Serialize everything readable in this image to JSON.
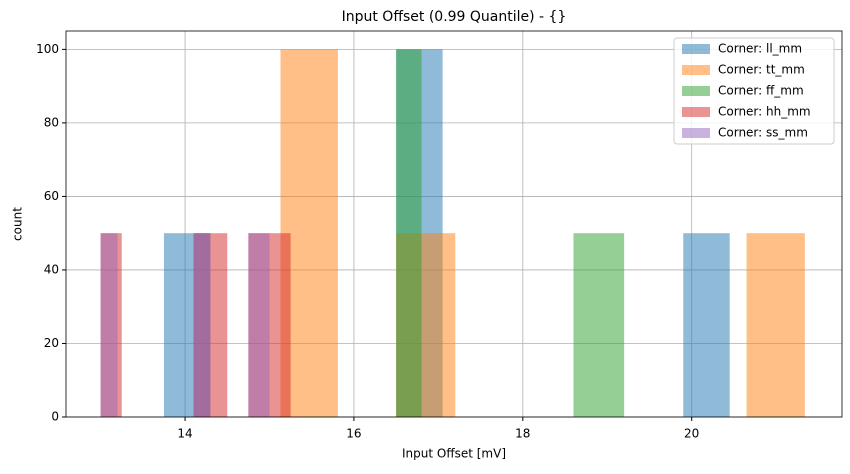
{
  "chart_data": {
    "type": "histogram",
    "title": "Input Offset (0.99 Quantile) - {}",
    "x_label": "Input Offset [mV]",
    "y_label": "count",
    "alpha": 0.5,
    "series": [
      {
        "name": "Corner: ll_mm",
        "color": "#1f77b4",
        "bins": [
          13.75,
          14.3,
          16.5,
          17.05,
          19.9,
          20.45
        ],
        "values": [
          50,
          0,
          100,
          0,
          50
        ]
      },
      {
        "name": "Corner: tt_mm",
        "color": "#ff7f0e",
        "bins": [
          15.13,
          15.81,
          16.5,
          17.2,
          20.65,
          21.34
        ],
        "values": [
          100,
          0,
          50,
          0,
          50
        ]
      },
      {
        "name": "Corner: ff_mm",
        "color": "#2ca02c",
        "bins": [
          16.5,
          16.8,
          18.6,
          19.2
        ],
        "values": [
          100,
          0,
          50
        ]
      },
      {
        "name": "Corner: hh_mm",
        "color": "#d62728",
        "bins": [
          13.0,
          13.25,
          14.1,
          14.5,
          14.75,
          15.25
        ],
        "values": [
          50,
          0,
          50,
          0,
          50
        ]
      },
      {
        "name": "Corner: ss_mm",
        "color": "#9467bd",
        "bins": [
          13.0,
          13.2,
          14.1,
          14.3,
          14.75,
          15.0
        ],
        "values": [
          50,
          0,
          50,
          0,
          50
        ]
      }
    ],
    "xlim": [
      12.59,
      21.78
    ],
    "xticks": [
      14,
      16,
      18,
      20
    ],
    "ylim": [
      0,
      105
    ],
    "yticks": [
      0,
      20,
      40,
      60,
      80,
      100
    ],
    "grid": true,
    "legend": "upper right"
  }
}
